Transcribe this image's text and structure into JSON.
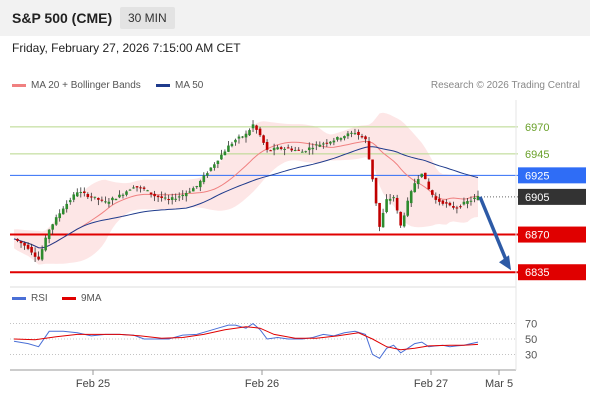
{
  "header": {
    "symbol": "S&P 500 (CME)",
    "timeframe": "30 MIN"
  },
  "datetime": "Friday, February 27, 2026 7:15:00 AM CET",
  "copyright": "Research © 2026 Trading Central",
  "legend": {
    "main": [
      {
        "label": "MA 20 + Bollinger Bands",
        "color": "#f08080"
      },
      {
        "label": "MA 50",
        "color": "#1f3b8c"
      }
    ],
    "rsi": [
      {
        "label": "RSI",
        "color": "#4a6fd6"
      },
      {
        "label": "9MA",
        "color": "#e00000"
      }
    ]
  },
  "colors": {
    "resistance_green": "#b6d88a",
    "pivot_blue": "#2f6df6",
    "support_red": "#e00000",
    "last_price": "#333333",
    "candle_up": "#2e8b2e",
    "candle_down": "#c00000",
    "band_fill": "#fde2e2",
    "arrow": "#2d5aa6"
  },
  "chart_data": [
    {
      "type": "candlestick",
      "x_ticks": [
        "Feb 25",
        "Feb 26",
        "Feb 27",
        "Mar 5"
      ],
      "ylim": [
        6825,
        6995
      ],
      "levels": [
        {
          "value": 6970,
          "label": "6970",
          "kind": "resistance"
        },
        {
          "value": 6945,
          "label": "6945",
          "kind": "resistance"
        },
        {
          "value": 6925,
          "label": "6925",
          "kind": "pivot"
        },
        {
          "value": 6905,
          "label": "6905",
          "kind": "last"
        },
        {
          "value": 6870,
          "label": "6870",
          "kind": "support"
        },
        {
          "value": 6835,
          "label": "6835",
          "kind": "support"
        }
      ],
      "price_path": [
        [
          0,
          6866
        ],
        [
          4,
          6858
        ],
        [
          7,
          6847
        ],
        [
          10,
          6875
        ],
        [
          14,
          6895
        ],
        [
          18,
          6910
        ],
        [
          22,
          6905
        ],
        [
          26,
          6900
        ],
        [
          30,
          6906
        ],
        [
          34,
          6915
        ],
        [
          37,
          6912
        ],
        [
          40,
          6906
        ],
        [
          44,
          6902
        ],
        [
          48,
          6907
        ],
        [
          52,
          6915
        ],
        [
          55,
          6928
        ],
        [
          58,
          6940
        ],
        [
          61,
          6952
        ],
        [
          63,
          6958
        ],
        [
          66,
          6963
        ],
        [
          68,
          6972
        ],
        [
          70,
          6962
        ],
        [
          72,
          6948
        ],
        [
          75,
          6950
        ],
        [
          78,
          6950
        ],
        [
          82,
          6947
        ],
        [
          85,
          6952
        ],
        [
          88,
          6955
        ],
        [
          91,
          6958
        ],
        [
          94,
          6962
        ],
        [
          97,
          6965
        ],
        [
          100,
          6958
        ],
        [
          102,
          6922
        ],
        [
          104,
          6877
        ],
        [
          106,
          6902
        ],
        [
          108,
          6905
        ],
        [
          110,
          6878
        ],
        [
          112,
          6900
        ],
        [
          114,
          6918
        ],
        [
          116,
          6928
        ],
        [
          118,
          6912
        ],
        [
          120,
          6902
        ],
        [
          122,
          6900
        ],
        [
          124,
          6896
        ],
        [
          126,
          6895
        ],
        [
          128,
          6899
        ],
        [
          130,
          6902
        ],
        [
          132,
          6905
        ]
      ],
      "x_index_range": [
        0,
        132
      ],
      "forecast_arrow": {
        "from_index": 132,
        "from_value": 6905,
        "to_value": 6835
      }
    },
    {
      "type": "line",
      "name": "RSI",
      "yticks": [
        "70",
        "50",
        "30"
      ],
      "ylim": [
        15,
        85
      ],
      "series": [
        {
          "name": "RSI",
          "points": [
            [
              0,
              47
            ],
            [
              4,
              44
            ],
            [
              7,
              40
            ],
            [
              10,
              60
            ],
            [
              14,
              60
            ],
            [
              18,
              58
            ],
            [
              22,
              54
            ],
            [
              26,
              56
            ],
            [
              30,
              56
            ],
            [
              34,
              55
            ],
            [
              37,
              50
            ],
            [
              40,
              50
            ],
            [
              44,
              50
            ],
            [
              48,
              55
            ],
            [
              52,
              56
            ],
            [
              55,
              60
            ],
            [
              58,
              64
            ],
            [
              61,
              68
            ],
            [
              63,
              68
            ],
            [
              66,
              64
            ],
            [
              68,
              70
            ],
            [
              70,
              62
            ],
            [
              72,
              50
            ],
            [
              75,
              52
            ],
            [
              78,
              50
            ],
            [
              82,
              50
            ],
            [
              85,
              52
            ],
            [
              88,
              56
            ],
            [
              91,
              54
            ],
            [
              94,
              58
            ],
            [
              97,
              60
            ],
            [
              100,
              56
            ],
            [
              102,
              30
            ],
            [
              104,
              25
            ],
            [
              106,
              38
            ],
            [
              108,
              42
            ],
            [
              110,
              32
            ],
            [
              112,
              38
            ],
            [
              114,
              44
            ],
            [
              116,
              46
            ],
            [
              118,
              40
            ],
            [
              120,
              41
            ],
            [
              122,
              42
            ],
            [
              124,
              40
            ],
            [
              126,
              41
            ],
            [
              128,
              42
            ],
            [
              130,
              44
            ],
            [
              132,
              46
            ]
          ]
        },
        {
          "name": "9MA",
          "points": [
            [
              0,
              50
            ],
            [
              6,
              49
            ],
            [
              12,
              53
            ],
            [
              18,
              56
            ],
            [
              24,
              56
            ],
            [
              30,
              56
            ],
            [
              36,
              54
            ],
            [
              42,
              51
            ],
            [
              48,
              52
            ],
            [
              54,
              56
            ],
            [
              60,
              62
            ],
            [
              66,
              66
            ],
            [
              70,
              64
            ],
            [
              74,
              56
            ],
            [
              80,
              51
            ],
            [
              86,
              51
            ],
            [
              92,
              54
            ],
            [
              98,
              58
            ],
            [
              102,
              50
            ],
            [
              106,
              40
            ],
            [
              110,
              36
            ],
            [
              114,
              38
            ],
            [
              118,
              41
            ],
            [
              124,
              42
            ],
            [
              128,
              42
            ],
            [
              132,
              43
            ]
          ]
        }
      ]
    }
  ]
}
